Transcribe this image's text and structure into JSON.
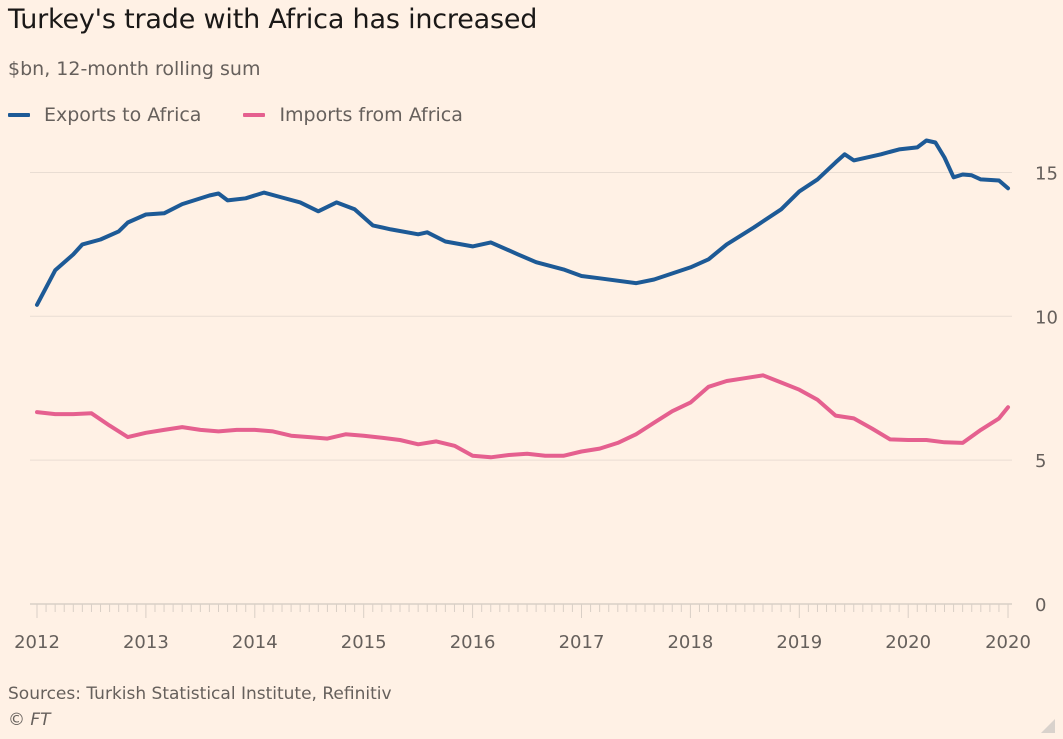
{
  "title": "Turkey's trade with Africa has increased",
  "subtitle": "$bn, 12-month rolling sum",
  "source": "Sources: Turkish Statistical Institute, Refinitiv",
  "copyright": "© FT",
  "colors": {
    "background": "#fff1e5",
    "exports": "#1d5a96",
    "imports": "#e5608f",
    "grid": "#e9ddd3",
    "text": "#66605c"
  },
  "chart_data": {
    "type": "line",
    "title": "Turkey's trade with Africa has increased",
    "subtitle": "$bn, 12-month rolling sum",
    "xlabel": "",
    "ylabel": "$bn",
    "x_unit": "months since Jan 2012",
    "xlim": [
      0,
      107
    ],
    "ylim": [
      0,
      17
    ],
    "y_ticks": [
      0,
      5,
      10,
      15
    ],
    "y_axis_side": "right",
    "x_ticks": [
      {
        "month": 0,
        "label": "2012"
      },
      {
        "month": 12,
        "label": "2013"
      },
      {
        "month": 24,
        "label": "2014"
      },
      {
        "month": 36,
        "label": "2015"
      },
      {
        "month": 48,
        "label": "2016"
      },
      {
        "month": 60,
        "label": "2017"
      },
      {
        "month": 72,
        "label": "2018"
      },
      {
        "month": 84,
        "label": "2019"
      },
      {
        "month": 96,
        "label": "2020"
      },
      {
        "month": 107,
        "label": "2020"
      }
    ],
    "grid": true,
    "legend_position": "top-left",
    "series": [
      {
        "name": "Exports to Africa",
        "color": "#1d5a96",
        "points": [
          [
            0,
            10.4
          ],
          [
            2,
            11.6
          ],
          [
            4,
            12.15
          ],
          [
            5,
            12.5
          ],
          [
            7,
            12.67
          ],
          [
            9,
            12.95
          ],
          [
            10,
            13.26
          ],
          [
            12,
            13.54
          ],
          [
            14,
            13.58
          ],
          [
            16,
            13.9
          ],
          [
            19,
            14.2
          ],
          [
            20,
            14.27
          ],
          [
            21,
            14.03
          ],
          [
            23,
            14.1
          ],
          [
            25,
            14.3
          ],
          [
            27,
            14.13
          ],
          [
            29,
            13.96
          ],
          [
            31,
            13.65
          ],
          [
            33,
            13.96
          ],
          [
            35,
            13.72
          ],
          [
            37,
            13.16
          ],
          [
            39,
            13.02
          ],
          [
            42,
            12.85
          ],
          [
            43,
            12.92
          ],
          [
            45,
            12.6
          ],
          [
            48,
            12.43
          ],
          [
            50,
            12.57
          ],
          [
            53,
            12.15
          ],
          [
            55,
            11.88
          ],
          [
            58,
            11.63
          ],
          [
            60,
            11.4
          ],
          [
            62,
            11.32
          ],
          [
            66,
            11.15
          ],
          [
            68,
            11.28
          ],
          [
            72,
            11.7
          ],
          [
            74,
            11.98
          ],
          [
            76,
            12.5
          ],
          [
            79,
            13.09
          ],
          [
            82,
            13.72
          ],
          [
            84,
            14.34
          ],
          [
            86,
            14.76
          ],
          [
            88,
            15.35
          ],
          [
            89,
            15.63
          ],
          [
            90,
            15.42
          ],
          [
            93,
            15.63
          ],
          [
            95,
            15.8
          ],
          [
            97,
            15.87
          ],
          [
            98,
            16.11
          ],
          [
            99,
            16.04
          ],
          [
            100,
            15.52
          ],
          [
            101,
            14.83
          ],
          [
            102,
            14.93
          ],
          [
            103,
            14.9
          ],
          [
            104,
            14.76
          ],
          [
            106,
            14.72
          ],
          [
            107,
            14.45
          ]
        ]
      },
      {
        "name": "Imports from Africa",
        "color": "#e5608f",
        "points": [
          [
            0,
            6.67
          ],
          [
            2,
            6.6
          ],
          [
            4,
            6.6
          ],
          [
            6,
            6.63
          ],
          [
            8,
            6.2
          ],
          [
            10,
            5.8
          ],
          [
            12,
            5.95
          ],
          [
            14,
            6.05
          ],
          [
            16,
            6.15
          ],
          [
            18,
            6.05
          ],
          [
            20,
            6.0
          ],
          [
            22,
            6.05
          ],
          [
            24,
            6.05
          ],
          [
            26,
            6.0
          ],
          [
            28,
            5.85
          ],
          [
            30,
            5.8
          ],
          [
            32,
            5.75
          ],
          [
            34,
            5.9
          ],
          [
            36,
            5.85
          ],
          [
            38,
            5.78
          ],
          [
            40,
            5.7
          ],
          [
            42,
            5.55
          ],
          [
            44,
            5.65
          ],
          [
            46,
            5.5
          ],
          [
            48,
            5.15
          ],
          [
            50,
            5.1
          ],
          [
            52,
            5.18
          ],
          [
            54,
            5.22
          ],
          [
            56,
            5.15
          ],
          [
            58,
            5.15
          ],
          [
            60,
            5.3
          ],
          [
            62,
            5.4
          ],
          [
            64,
            5.6
          ],
          [
            66,
            5.9
          ],
          [
            68,
            6.3
          ],
          [
            70,
            6.7
          ],
          [
            72,
            7.0
          ],
          [
            74,
            7.55
          ],
          [
            76,
            7.75
          ],
          [
            78,
            7.85
          ],
          [
            80,
            7.95
          ],
          [
            82,
            7.7
          ],
          [
            84,
            7.45
          ],
          [
            86,
            7.1
          ],
          [
            88,
            6.55
          ],
          [
            90,
            6.45
          ],
          [
            92,
            6.1
          ],
          [
            94,
            5.72
          ],
          [
            96,
            5.7
          ],
          [
            98,
            5.7
          ],
          [
            100,
            5.62
          ],
          [
            102,
            5.6
          ],
          [
            104,
            6.05
          ],
          [
            106,
            6.45
          ],
          [
            107,
            6.84
          ]
        ]
      }
    ]
  }
}
